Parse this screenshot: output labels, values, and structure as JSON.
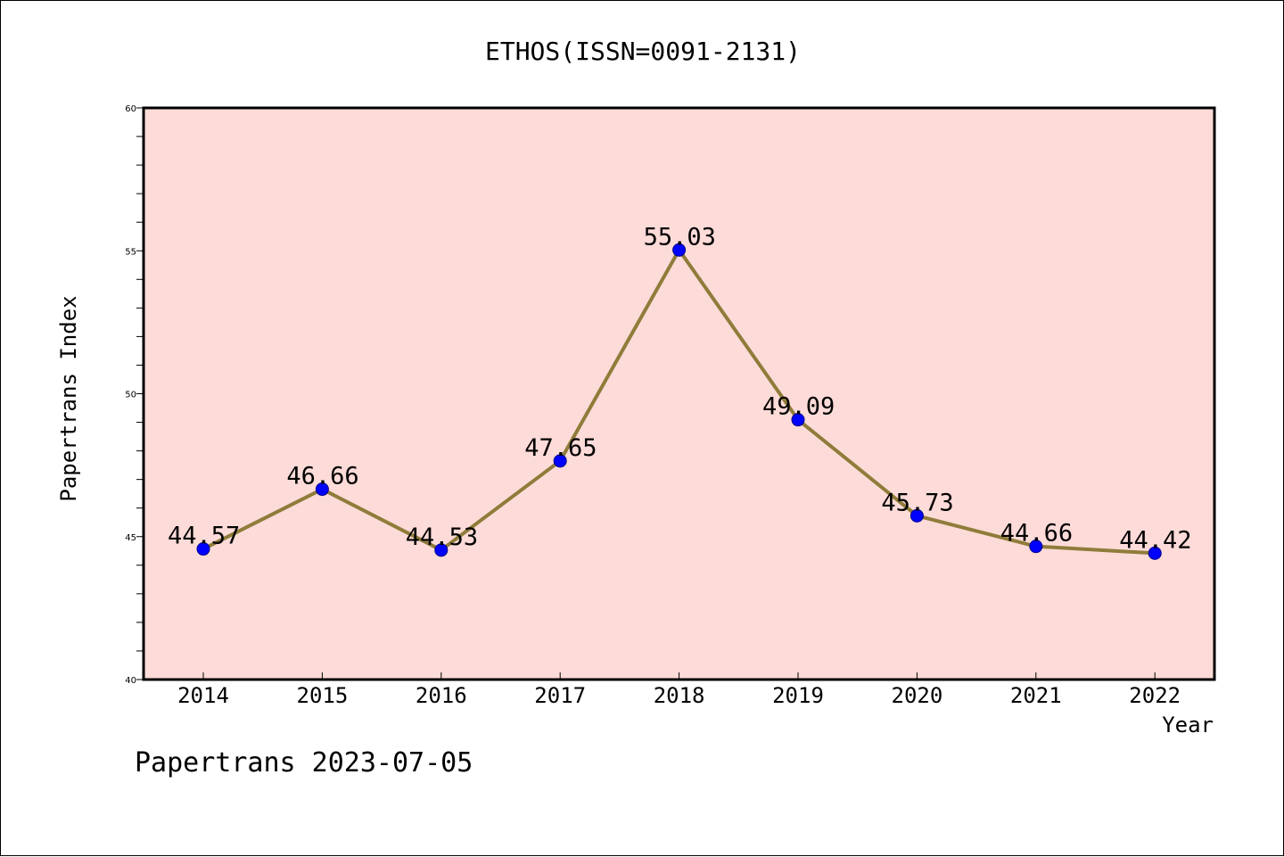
{
  "chart_data": {
    "type": "line",
    "title": "ETHOS(ISSN=0091-2131)",
    "xlabel": "Year",
    "ylabel": "Papertrans Index",
    "footer": "Papertrans 2023-07-05",
    "x": [
      "2014",
      "2015",
      "2016",
      "2017",
      "2018",
      "2019",
      "2020",
      "2021",
      "2022"
    ],
    "y": [
      44.57,
      46.66,
      44.53,
      47.65,
      55.03,
      49.09,
      45.73,
      44.66,
      44.42
    ],
    "data_labels": [
      "44.57",
      "46.66",
      "44.53",
      "47.65",
      "55.03",
      "49.09",
      "45.73",
      "44.66",
      "44.42"
    ],
    "ylim": [
      40,
      60
    ],
    "yticks": [
      "40",
      "45",
      "50",
      "55",
      "60"
    ],
    "grid": false,
    "colors": {
      "plot_background": "#fddbd8",
      "line": "#8f7c3a",
      "marker": "#0000ff"
    }
  }
}
